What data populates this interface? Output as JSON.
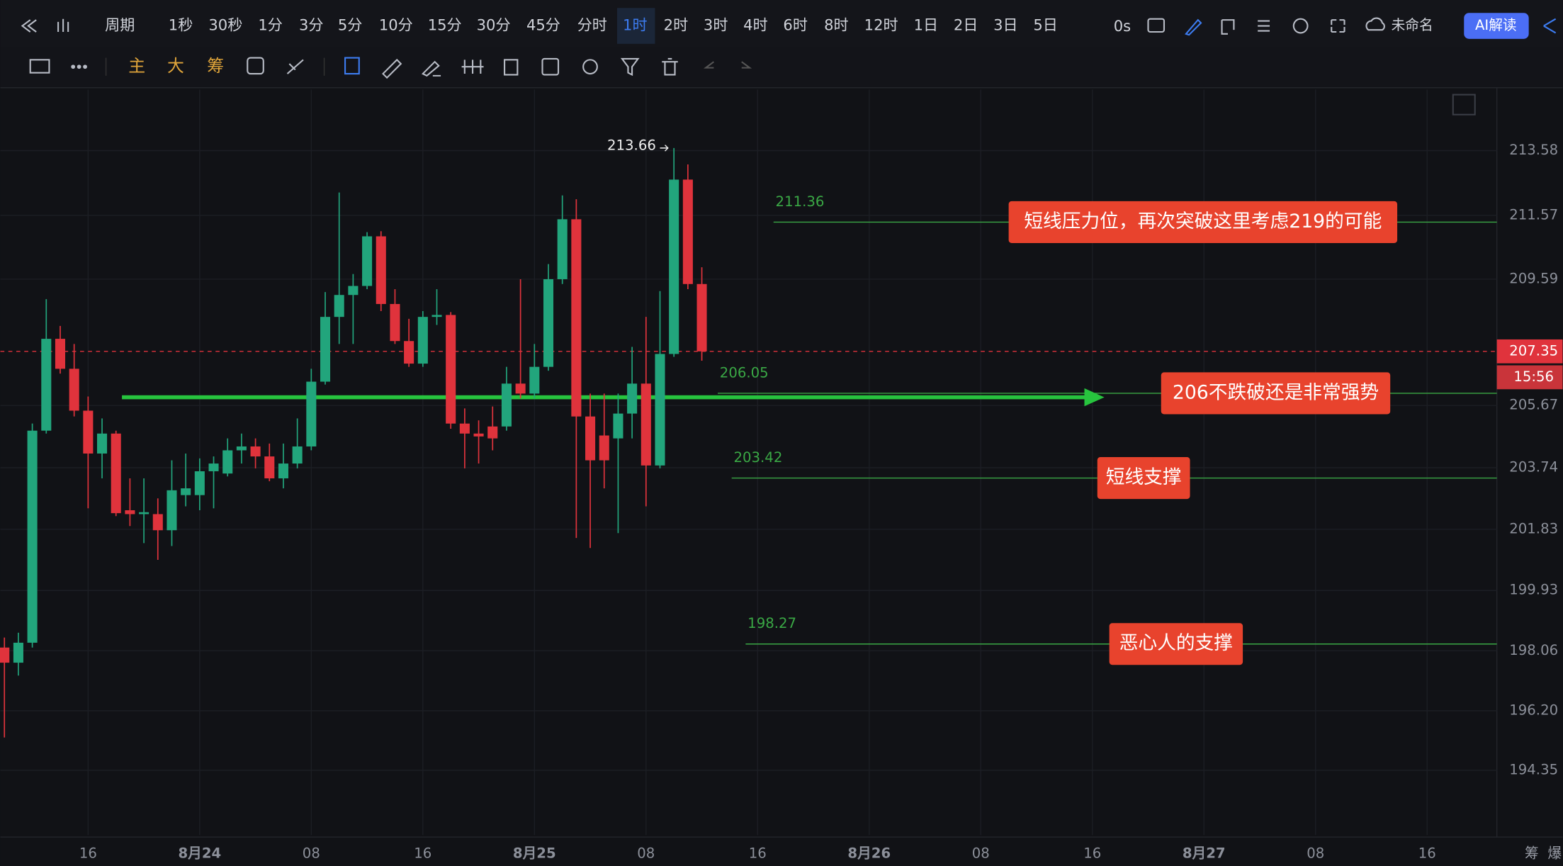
{
  "toolbar": {
    "intervals": [
      "1秒",
      "30秒",
      "1分",
      "3分",
      "5分",
      "10分",
      "15分",
      "30分",
      "45分",
      "分时",
      "1时",
      "2时",
      "3时",
      "4时",
      "6时",
      "8时",
      "12时",
      "1日",
      "2日",
      "3日",
      "5日"
    ],
    "period": "周期",
    "timer": "0s",
    "layout_name": "未命名",
    "ai": "AI解读",
    "tools": [
      "主",
      "大",
      "筹"
    ],
    "corner": [
      "筹",
      "爆"
    ]
  },
  "chart_data": {
    "type": "candlestick",
    "x": [
      -14,
      -13,
      -12,
      -11,
      -10,
      -9,
      -8,
      -7,
      -6,
      -5,
      -4,
      -3,
      -2,
      -1,
      0,
      1,
      2,
      3,
      4,
      5,
      6,
      7,
      8,
      9,
      10,
      11,
      12,
      13,
      14,
      15,
      16,
      17,
      18,
      19,
      20,
      21,
      22,
      23,
      24,
      25,
      26,
      27,
      28,
      29,
      30,
      31,
      32,
      33,
      34,
      35,
      36
    ],
    "open": [
      198.16,
      197.69,
      198.31,
      204.89,
      207.74,
      206.81,
      205.51,
      204.18,
      204.8,
      202.42,
      202.3,
      202.3,
      201.8,
      202.89,
      202.89,
      203.63,
      203.56,
      204.28,
      204.4,
      204.09,
      203.41,
      203.87,
      204.4,
      206.41,
      208.42,
      209.1,
      209.38,
      210.92,
      208.82,
      207.67,
      206.97,
      208.42,
      208.48,
      205.11,
      204.8,
      205.02,
      205.02,
      206.35,
      206.04,
      206.87,
      209.59,
      211.45,
      205.33,
      204.74,
      204.65,
      205.42,
      206.35,
      203.81,
      207.27,
      212.68,
      209.44
    ],
    "high": [
      198.47,
      198.62,
      205.11,
      208.97,
      208.14,
      207.58,
      205.95,
      205.27,
      204.89,
      203.41,
      203.41,
      202.79,
      203.97,
      204.18,
      204.03,
      204.09,
      204.65,
      204.8,
      204.65,
      204.49,
      204.49,
      205.27,
      206.81,
      209.19,
      212.28,
      209.75,
      211.05,
      211.08,
      209.28,
      208.36,
      208.6,
      209.28,
      208.57,
      205.58,
      205.21,
      205.64,
      206.87,
      209.59,
      207.58,
      210.06,
      212.19,
      212.07,
      206.04,
      206.04,
      206.04,
      207.49,
      208.42,
      209.22,
      213.66,
      213.15,
      209.96
    ],
    "low": [
      195.37,
      197.29,
      198.16,
      204.8,
      206.66,
      205.33,
      202.48,
      203.41,
      202.24,
      201.93,
      201.4,
      200.88,
      201.31,
      202.54,
      202.42,
      202.48,
      203.47,
      203.87,
      203.72,
      203.32,
      203.1,
      203.72,
      204.28,
      206.32,
      207.58,
      207.58,
      209.28,
      208.6,
      207.58,
      206.87,
      206.87,
      208.17,
      204.95,
      203.72,
      203.87,
      204.28,
      204.89,
      205.89,
      205.89,
      206.75,
      209.44,
      201.56,
      201.25,
      203.1,
      201.71,
      204.65,
      202.54,
      203.72,
      207.18,
      209.28,
      207.06
    ],
    "close": [
      197.69,
      198.31,
      204.89,
      207.74,
      206.81,
      205.51,
      204.18,
      204.8,
      202.33,
      202.3,
      202.36,
      201.8,
      203.04,
      203.1,
      203.63,
      203.87,
      204.28,
      204.4,
      204.09,
      203.41,
      203.87,
      204.4,
      206.41,
      208.42,
      209.1,
      209.38,
      210.92,
      208.82,
      207.67,
      206.97,
      208.42,
      208.48,
      205.11,
      204.8,
      204.71,
      204.65,
      206.35,
      206.04,
      206.87,
      209.59,
      211.45,
      205.33,
      203.97,
      203.97,
      205.42,
      206.35,
      203.81,
      207.27,
      212.68,
      209.44,
      207.35
    ],
    "up_color": "#22a57c",
    "down_color": "#e0333c",
    "xlim": [
      -14.29,
      93
    ],
    "xticks": [
      {
        "value": -8,
        "label": "16"
      },
      {
        "value": 0,
        "label": "8月24"
      },
      {
        "value": 8,
        "label": "08"
      },
      {
        "value": 16,
        "label": "16"
      },
      {
        "value": 24,
        "label": "8月25"
      },
      {
        "value": 32,
        "label": "08"
      },
      {
        "value": 40,
        "label": "16"
      },
      {
        "value": 48,
        "label": "8月26"
      },
      {
        "value": 56,
        "label": "08"
      },
      {
        "value": 64,
        "label": "16"
      },
      {
        "value": 72,
        "label": "8月27"
      },
      {
        "value": 80,
        "label": "08"
      },
      {
        "value": 88,
        "label": "16"
      }
    ],
    "ylim": [
      192.34,
      215.47
    ],
    "yticks": [
      213.58,
      211.57,
      209.59,
      205.67,
      203.74,
      201.83,
      199.93,
      198.06,
      {
        "value": 196.2,
        "label": "196.20"
      },
      194.35
    ],
    "grid": true,
    "high_marker": 213.66,
    "last_price": 207.35,
    "countdown": "15:56",
    "levels": [
      {
        "value": 211.36,
        "note": "短线压力位，再次突破这里考虑219的可能"
      },
      {
        "value": 206.05,
        "note": "206不跌破还是非常强势"
      },
      {
        "value": 203.42,
        "note": "短线支撑"
      },
      {
        "value": 198.27,
        "note": "恶心人的支撑"
      }
    ],
    "level_color": "#3aa845",
    "note_color": "#e8432d"
  }
}
